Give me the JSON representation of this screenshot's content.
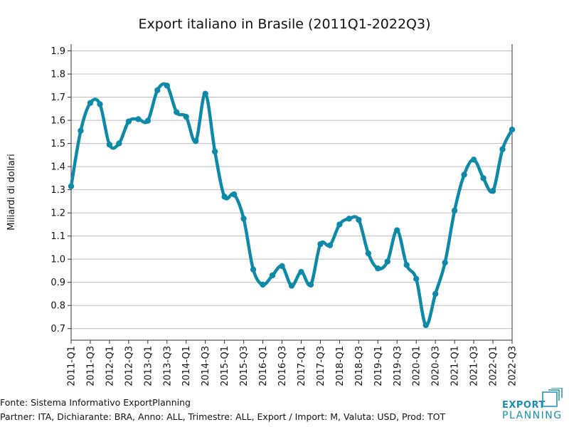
{
  "chart_data": {
    "type": "line",
    "title": "Export italiano in Brasile (2011Q1-2022Q3)",
    "xlabel": "",
    "ylabel": "Miliardi di dollari",
    "ylim": [
      0.65,
      1.92
    ],
    "yticks": [
      "0.7",
      "0.8",
      "0.9",
      "1.0",
      "1.1",
      "1.2",
      "1.3",
      "1.4",
      "1.5",
      "1.6",
      "1.7",
      "1.8",
      "1.9"
    ],
    "grid": "horizontal",
    "line_color": "#0e8aa8",
    "categories": [
      "2011-Q1",
      "2011-Q2",
      "2011-Q3",
      "2011-Q4",
      "2012-Q1",
      "2012-Q2",
      "2012-Q3",
      "2012-Q4",
      "2013-Q1",
      "2013-Q2",
      "2013-Q3",
      "2013-Q4",
      "2014-Q1",
      "2014-Q2",
      "2014-Q3",
      "2014-Q4",
      "2015-Q1",
      "2015-Q2",
      "2015-Q3",
      "2015-Q4",
      "2016-Q1",
      "2016-Q2",
      "2016-Q3",
      "2016-Q4",
      "2017-Q1",
      "2017-Q2",
      "2017-Q3",
      "2017-Q4",
      "2018-Q1",
      "2018-Q2",
      "2018-Q3",
      "2018-Q4",
      "2019-Q1",
      "2019-Q2",
      "2019-Q3",
      "2019-Q4",
      "2020-Q1",
      "2020-Q2",
      "2020-Q3",
      "2020-Q4",
      "2021-Q1",
      "2021-Q2",
      "2021-Q3",
      "2021-Q4",
      "2022-Q1",
      "2022-Q2",
      "2022-Q3"
    ],
    "xtick_labels": [
      "2011-Q1",
      "2011-Q3",
      "2012-Q1",
      "2012-Q3",
      "2013-Q1",
      "2013-Q3",
      "2014-Q1",
      "2014-Q3",
      "2015-Q1",
      "2015-Q3",
      "2016-Q1",
      "2016-Q3",
      "2017-Q1",
      "2017-Q3",
      "2018-Q1",
      "2018-Q3",
      "2019-Q1",
      "2019-Q3",
      "2020-Q1",
      "2020-Q3",
      "2021-Q1",
      "2021-Q3",
      "2022-Q1",
      "2022-Q3"
    ],
    "series": [
      {
        "values": [
          1.315,
          1.555,
          1.675,
          1.67,
          1.495,
          1.5,
          1.595,
          1.605,
          1.598,
          1.73,
          1.75,
          1.635,
          1.615,
          1.51,
          1.715,
          1.465,
          1.27,
          1.28,
          1.175,
          0.955,
          0.89,
          0.93,
          0.97,
          0.885,
          0.945,
          0.89,
          1.065,
          1.06,
          1.15,
          1.175,
          1.17,
          1.025,
          0.96,
          0.99,
          1.125,
          0.975,
          0.915,
          0.715,
          0.85,
          0.985,
          1.21,
          1.365,
          1.43,
          1.35,
          1.295,
          1.475,
          1.56
        ]
      }
    ]
  },
  "footer": {
    "source": "Fonte: Sistema Informativo ExportPlanning",
    "params": "Partner: ITA, Dichiarante: BRA, Anno: ALL, Trimestre: ALL, Export / Import: M, Valuta: USD, Prod: TOT"
  },
  "logo": {
    "line1": "EXPORT",
    "line2": "PLANNING",
    "color": "#1a8fb0"
  }
}
